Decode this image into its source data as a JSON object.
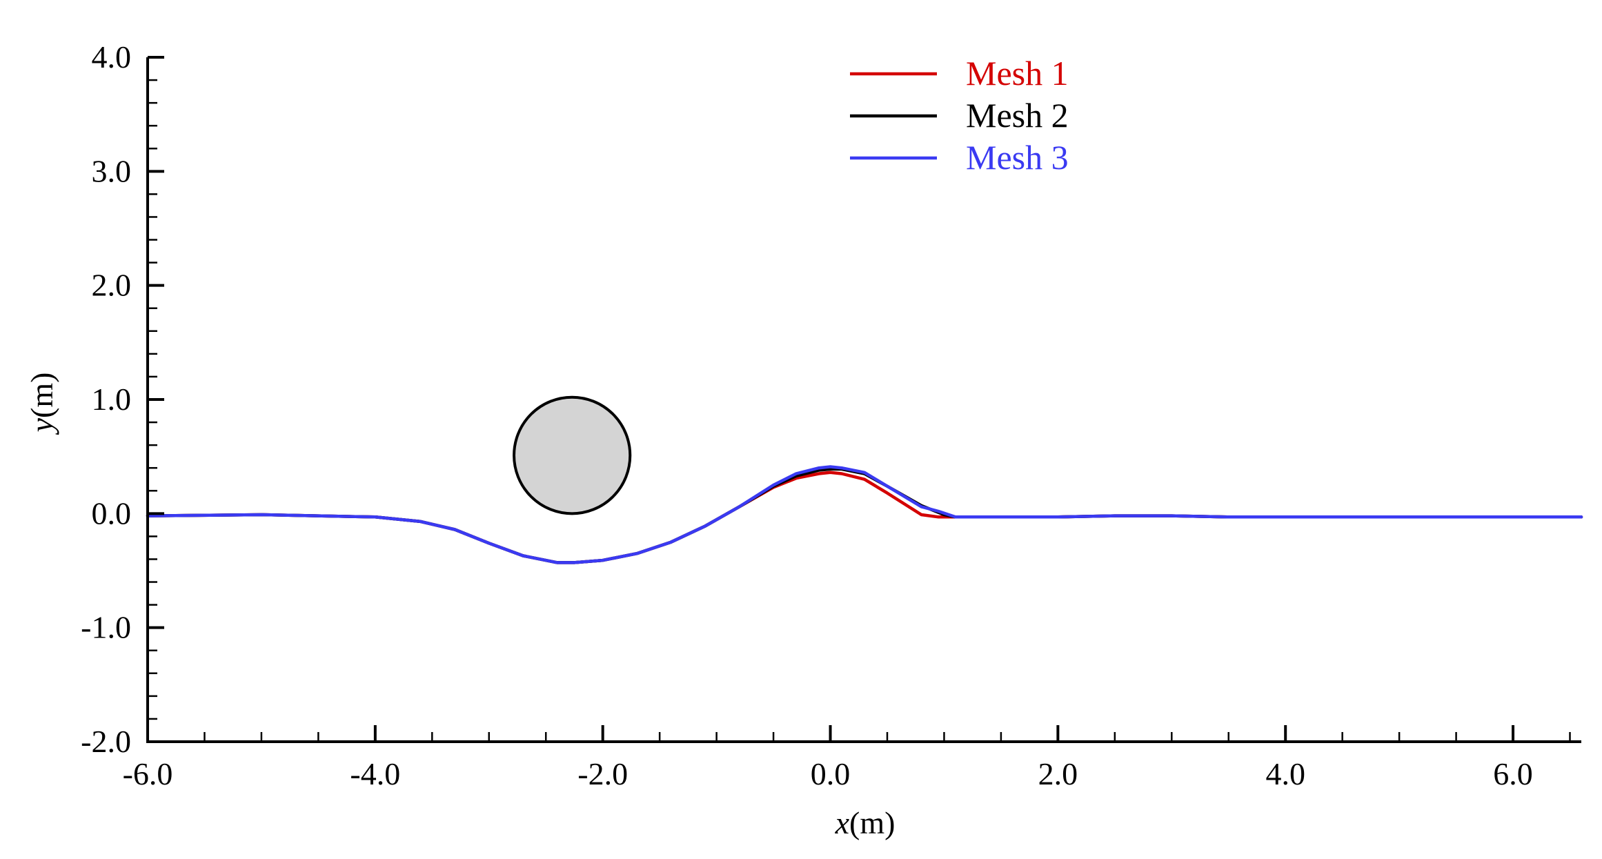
{
  "chart_data": {
    "type": "line",
    "title": "",
    "xlabel": {
      "var": "x",
      "unit": "(m)"
    },
    "ylabel": {
      "var": "y",
      "unit": "(m)"
    },
    "xlim": [
      -6.0,
      6.6
    ],
    "ylim": [
      -2.0,
      4.0
    ],
    "x_ticks": [
      {
        "value": -6,
        "label": "-6.0"
      },
      {
        "value": -4,
        "label": "-4.0"
      },
      {
        "value": -2,
        "label": "-2.0"
      },
      {
        "value": 0,
        "label": "0.0"
      },
      {
        "value": 2,
        "label": "2.0"
      },
      {
        "value": 4,
        "label": "4.0"
      },
      {
        "value": 6,
        "label": "6.0"
      }
    ],
    "y_ticks": [
      {
        "value": -2,
        "label": "-2.0"
      },
      {
        "value": -1,
        "label": "-1.0"
      },
      {
        "value": 0,
        "label": "0.0"
      },
      {
        "value": 1,
        "label": "1.0"
      },
      {
        "value": 2,
        "label": "2.0"
      },
      {
        "value": 3,
        "label": "3.0"
      },
      {
        "value": 4,
        "label": "4.0"
      }
    ],
    "x_minor_step": 0.5,
    "y_minor_step": 0.2,
    "grid": false,
    "legend_position": "top-center",
    "series": [
      {
        "name": "Mesh 1",
        "color": "#d40000",
        "x": [
          -6.0,
          -5.0,
          -4.0,
          -3.6,
          -3.3,
          -3.0,
          -2.7,
          -2.4,
          -2.25,
          -2.0,
          -1.7,
          -1.4,
          -1.1,
          -0.8,
          -0.5,
          -0.3,
          -0.1,
          0.0,
          0.1,
          0.3,
          0.5,
          0.8,
          0.95,
          1.1,
          1.5,
          2.0,
          2.5,
          3.0,
          3.5,
          4.0,
          4.5,
          5.0,
          5.5,
          6.0,
          6.6
        ],
        "y": [
          -0.02,
          -0.01,
          -0.03,
          -0.07,
          -0.14,
          -0.26,
          -0.37,
          -0.43,
          -0.43,
          -0.41,
          -0.35,
          -0.25,
          -0.11,
          0.06,
          0.23,
          0.31,
          0.35,
          0.36,
          0.35,
          0.3,
          0.18,
          -0.01,
          -0.03,
          -0.03,
          -0.03,
          -0.03,
          -0.02,
          -0.02,
          -0.03,
          -0.03,
          -0.03,
          -0.03,
          -0.03,
          -0.03,
          -0.03
        ]
      },
      {
        "name": "Mesh 2",
        "color": "#000000",
        "x": [
          -6.0,
          -5.0,
          -4.0,
          -3.6,
          -3.3,
          -3.0,
          -2.7,
          -2.4,
          -2.25,
          -2.0,
          -1.7,
          -1.4,
          -1.1,
          -0.8,
          -0.5,
          -0.3,
          -0.1,
          0.0,
          0.1,
          0.3,
          0.5,
          0.8,
          1.0,
          1.1,
          1.5,
          2.0,
          2.5,
          3.0,
          3.5,
          4.0,
          4.5,
          5.0,
          5.5,
          6.0,
          6.6
        ],
        "y": [
          -0.02,
          -0.01,
          -0.03,
          -0.07,
          -0.14,
          -0.26,
          -0.37,
          -0.43,
          -0.43,
          -0.41,
          -0.35,
          -0.25,
          -0.11,
          0.06,
          0.24,
          0.33,
          0.38,
          0.39,
          0.39,
          0.35,
          0.24,
          0.07,
          -0.01,
          -0.03,
          -0.03,
          -0.03,
          -0.02,
          -0.02,
          -0.03,
          -0.03,
          -0.03,
          -0.03,
          -0.03,
          -0.03,
          -0.03
        ]
      },
      {
        "name": "Mesh 3",
        "color": "#3a3af2",
        "x": [
          -6.0,
          -5.0,
          -4.0,
          -3.6,
          -3.3,
          -3.0,
          -2.7,
          -2.4,
          -2.25,
          -2.0,
          -1.7,
          -1.4,
          -1.1,
          -0.8,
          -0.5,
          -0.3,
          -0.1,
          0.0,
          0.1,
          0.3,
          0.5,
          0.8,
          0.95,
          1.1,
          1.5,
          2.0,
          2.5,
          3.0,
          3.5,
          4.0,
          4.5,
          5.0,
          5.5,
          6.0,
          6.6
        ],
        "y": [
          -0.02,
          -0.01,
          -0.03,
          -0.07,
          -0.14,
          -0.26,
          -0.37,
          -0.43,
          -0.43,
          -0.41,
          -0.35,
          -0.25,
          -0.11,
          0.06,
          0.25,
          0.35,
          0.4,
          0.41,
          0.4,
          0.36,
          0.24,
          0.06,
          0.02,
          -0.03,
          -0.03,
          -0.03,
          -0.02,
          -0.02,
          -0.03,
          -0.03,
          -0.03,
          -0.03,
          -0.03,
          -0.03,
          -0.03
        ]
      }
    ],
    "annotations": [
      {
        "type": "circle",
        "name": "cylinder",
        "center": [
          -2.27,
          0.51
        ],
        "radius": 0.51,
        "fill": "#d4d4d4",
        "stroke": "#000000"
      }
    ]
  }
}
